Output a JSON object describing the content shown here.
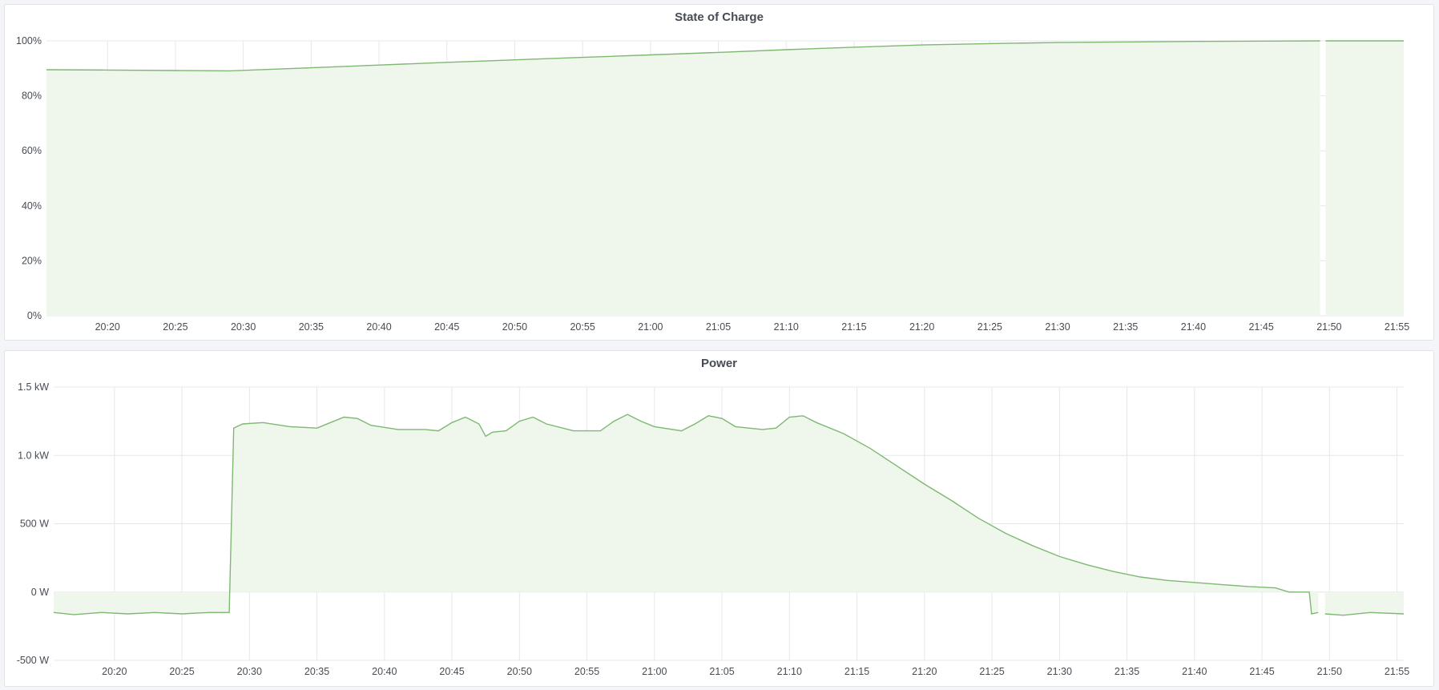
{
  "chart_data": [
    {
      "type": "area",
      "title": "State of Charge",
      "xlim": [
        "20:15:30",
        "21:55:30"
      ],
      "ylim": [
        0,
        100
      ],
      "y_ticks": [
        {
          "value": 0,
          "label": "0%"
        },
        {
          "value": 20,
          "label": "20%"
        },
        {
          "value": 40,
          "label": "40%"
        },
        {
          "value": 60,
          "label": "60%"
        },
        {
          "value": 80,
          "label": "80%"
        },
        {
          "value": 100,
          "label": "100%"
        }
      ],
      "x_ticks": [
        "20:20",
        "20:25",
        "20:30",
        "20:35",
        "20:40",
        "20:45",
        "20:50",
        "20:55",
        "21:00",
        "21:05",
        "21:10",
        "21:15",
        "21:20",
        "21:25",
        "21:30",
        "21:35",
        "21:40",
        "21:45",
        "21:50",
        "21:55"
      ],
      "grid": true,
      "color": "#7eb872",
      "fill": "#eff6ec",
      "series": [
        {
          "points": [
            [
              "20:15:30",
              89.5
            ],
            [
              "20:20",
              89.4
            ],
            [
              "20:25",
              89.2
            ],
            [
              "20:29",
              89.1
            ],
            [
              "20:35",
              90.2
            ],
            [
              "20:40",
              91.2
            ],
            [
              "20:45",
              92.2
            ],
            [
              "20:50",
              93.1
            ],
            [
              "20:55",
              94.0
            ],
            [
              "21:00",
              94.9
            ],
            [
              "21:05",
              95.8
            ],
            [
              "21:10",
              96.8
            ],
            [
              "21:15",
              97.7
            ],
            [
              "21:20",
              98.5
            ],
            [
              "21:25",
              99.0
            ],
            [
              "21:30",
              99.4
            ],
            [
              "21:35",
              99.6
            ],
            [
              "21:40",
              99.8
            ],
            [
              "21:45",
              99.9
            ],
            [
              "21:49:20",
              100
            ],
            [
              "21:49:20",
              null
            ],
            [
              "21:49:45",
              100
            ],
            [
              "21:55:30",
              100
            ]
          ]
        }
      ]
    },
    {
      "type": "area",
      "title": "Power",
      "xlim": [
        "20:15:30",
        "21:55:30"
      ],
      "ylim": [
        -500,
        1500
      ],
      "y_ticks": [
        {
          "value": -500,
          "label": "-500 W"
        },
        {
          "value": 0,
          "label": "0 W"
        },
        {
          "value": 500,
          "label": "500 W"
        },
        {
          "value": 1000,
          "label": "1.0 kW"
        },
        {
          "value": 1500,
          "label": "1.5 kW"
        }
      ],
      "x_ticks": [
        "20:20",
        "20:25",
        "20:30",
        "20:35",
        "20:40",
        "20:45",
        "20:50",
        "20:55",
        "21:00",
        "21:05",
        "21:10",
        "21:15",
        "21:20",
        "21:25",
        "21:30",
        "21:35",
        "21:40",
        "21:45",
        "21:50",
        "21:55"
      ],
      "grid": true,
      "color": "#7eb872",
      "fill": "#eff6ec",
      "series": [
        {
          "points": [
            [
              "20:15:30",
              -150
            ],
            [
              "20:17",
              -165
            ],
            [
              "20:19",
              -150
            ],
            [
              "20:21",
              -160
            ],
            [
              "20:23",
              -150
            ],
            [
              "20:25",
              -160
            ],
            [
              "20:27",
              -150
            ],
            [
              "20:28:30",
              -150
            ],
            [
              "20:28:50",
              1200
            ],
            [
              "20:29:30",
              1230
            ],
            [
              "20:31",
              1240
            ],
            [
              "20:33",
              1210
            ],
            [
              "20:35",
              1200
            ],
            [
              "20:36",
              1240
            ],
            [
              "20:37",
              1280
            ],
            [
              "20:38",
              1270
            ],
            [
              "20:39",
              1220
            ],
            [
              "20:41",
              1190
            ],
            [
              "20:43",
              1190
            ],
            [
              "20:44",
              1180
            ],
            [
              "20:45",
              1240
            ],
            [
              "20:46",
              1280
            ],
            [
              "20:47",
              1230
            ],
            [
              "20:47:30",
              1140
            ],
            [
              "20:48",
              1170
            ],
            [
              "20:49",
              1180
            ],
            [
              "20:50",
              1250
            ],
            [
              "20:51",
              1280
            ],
            [
              "20:52",
              1230
            ],
            [
              "20:54",
              1180
            ],
            [
              "20:56",
              1180
            ],
            [
              "20:57",
              1250
            ],
            [
              "20:58",
              1300
            ],
            [
              "20:59",
              1250
            ],
            [
              "21:00",
              1210
            ],
            [
              "21:02",
              1180
            ],
            [
              "21:03",
              1230
            ],
            [
              "21:04",
              1290
            ],
            [
              "21:05",
              1270
            ],
            [
              "21:06",
              1210
            ],
            [
              "21:08",
              1190
            ],
            [
              "21:09",
              1200
            ],
            [
              "21:10",
              1280
            ],
            [
              "21:11",
              1290
            ],
            [
              "21:12",
              1240
            ],
            [
              "21:14",
              1160
            ],
            [
              "21:16",
              1050
            ],
            [
              "21:18",
              920
            ],
            [
              "21:20",
              790
            ],
            [
              "21:22",
              670
            ],
            [
              "21:24",
              540
            ],
            [
              "21:26",
              430
            ],
            [
              "21:28",
              340
            ],
            [
              "21:30",
              260
            ],
            [
              "21:32",
              200
            ],
            [
              "21:34",
              150
            ],
            [
              "21:36",
              110
            ],
            [
              "21:38",
              85
            ],
            [
              "21:40",
              70
            ],
            [
              "21:42",
              55
            ],
            [
              "21:44",
              40
            ],
            [
              "21:46",
              30
            ],
            [
              "21:47",
              0
            ],
            [
              "21:48:30",
              0
            ],
            [
              "21:48:40",
              -160
            ],
            [
              "21:49:10",
              -150
            ],
            [
              "21:49:10",
              null
            ],
            [
              "21:49:40",
              -160
            ],
            [
              "21:51",
              -170
            ],
            [
              "21:53",
              -150
            ],
            [
              "21:55:30",
              -160
            ]
          ]
        }
      ]
    }
  ]
}
